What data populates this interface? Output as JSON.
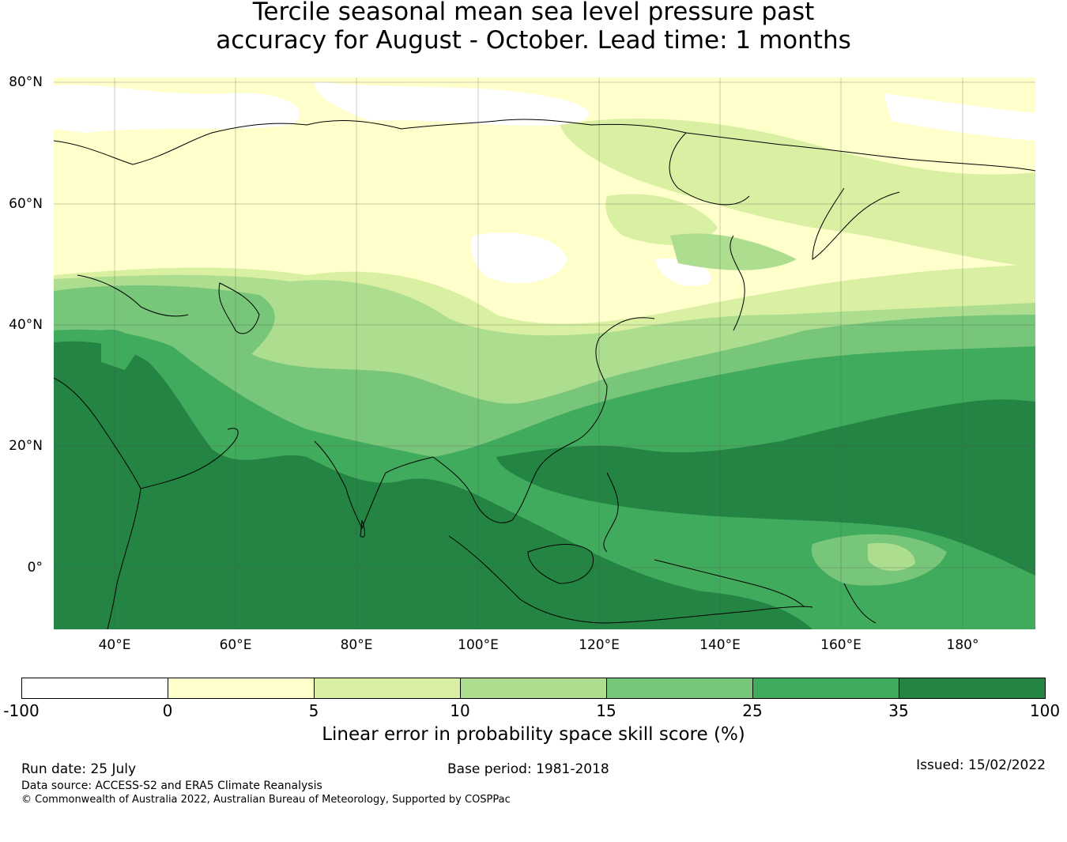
{
  "title": {
    "line1": "Tercile seasonal mean sea level pressure past",
    "line2": "accuracy for August - October. Lead time: 1 months"
  },
  "map": {
    "lat_labels": [
      "80°N",
      "60°N",
      "40°N",
      "20°N",
      "0°"
    ],
    "lon_labels": [
      "40°E",
      "60°E",
      "80°E",
      "100°E",
      "120°E",
      "140°E",
      "160°E",
      "180°"
    ],
    "lat_range": [
      -10,
      81
    ],
    "lon_range": [
      30,
      192
    ],
    "projection": "plate carree",
    "grid": true
  },
  "colorbar": {
    "ticks": [
      "-100",
      "0",
      "5",
      "10",
      "15",
      "25",
      "35",
      "100"
    ],
    "colors": [
      "#ffffff",
      "#ffffcc",
      "#d9f0a3",
      "#addd8e",
      "#78c679",
      "#41ab5d",
      "#238443"
    ],
    "label": "Linear error in probability space skill score (%)"
  },
  "footer": {
    "run_date": "Run date: 25 July",
    "base_period": "Base period: 1981-2018",
    "issued": "Issued: 15/02/2022",
    "data_source": "Data source: ACCESS-S2 and ERA5 Climate Reanalysis",
    "copyright": "© Commonwealth of Australia 2022, Australian Bureau of Meteorology, Supported by COSPPac"
  }
}
